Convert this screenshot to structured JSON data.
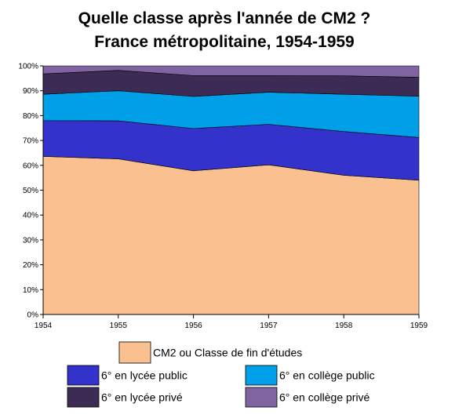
{
  "chart_data": {
    "type": "area",
    "stacked": true,
    "percent_scale": true,
    "title": [
      "Quelle classe après l'année de CM2 ?",
      "France métropolitaine, 1954-1959"
    ],
    "x": [
      "1954",
      "1955",
      "1956",
      "1957",
      "1958",
      "1959"
    ],
    "y_ticks": [
      "0%",
      "10%",
      "20%",
      "30%",
      "40%",
      "50%",
      "60%",
      "70%",
      "80%",
      "90%",
      "100%"
    ],
    "ylim": [
      0,
      100
    ],
    "grid": false,
    "legend_position": "bottom",
    "series": [
      {
        "name": "CM2 ou Classe de fin d'études",
        "color": "#FAC090",
        "values": [
          63.6,
          62.6,
          57.8,
          60.2,
          56.0,
          54.0
        ]
      },
      {
        "name": "6° en lycée public",
        "color": "#3333CC",
        "values": [
          14.4,
          15.3,
          17.0,
          16.3,
          17.6,
          17.2
        ]
      },
      {
        "name": "6° en collège public",
        "color": "#00A0E9",
        "values": [
          10.6,
          12.1,
          12.9,
          12.9,
          15.0,
          16.6
        ]
      },
      {
        "name": "6° en lycée privé",
        "color": "#3B2B55",
        "values": [
          8.2,
          8.2,
          8.4,
          6.7,
          7.4,
          7.6
        ]
      },
      {
        "name": "6° en collège privé",
        "color": "#8064A2",
        "values": [
          3.2,
          1.8,
          3.9,
          3.9,
          4.0,
          4.6
        ]
      }
    ]
  }
}
